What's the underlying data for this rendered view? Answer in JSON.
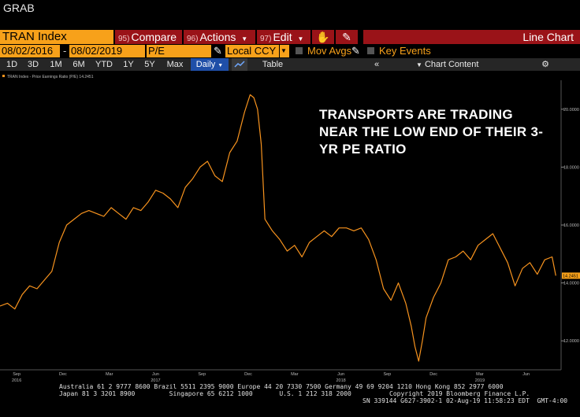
{
  "window": {
    "title": "GRAB"
  },
  "toolbar": {
    "ticker": "TRAN Index",
    "compare": {
      "num": "95)",
      "label": "Compare"
    },
    "actions": {
      "num": "96)",
      "label": "Actions"
    },
    "edit": {
      "num": "97)",
      "label": "Edit"
    },
    "chart_type": "Line Chart"
  },
  "settings": {
    "start_date": "08/02/2016",
    "end_date": "08/02/2019",
    "field": "P/E",
    "currency": "Local CCY",
    "mov_avgs": "Mov Avgs",
    "key_events": "Key Events"
  },
  "periods": {
    "items": [
      "1D",
      "3D",
      "1M",
      "6M",
      "YTD",
      "1Y",
      "5Y",
      "Max"
    ],
    "frequency": "Daily",
    "table": "Table",
    "chart_content": "Chart Content"
  },
  "footer": {
    "line1": "Australia 61 2 9777 8600 Brazil 5511 2395 9000 Europe 44 20 7330 7500 Germany 49 69 9204 1210 Hong Kong 852 2977 6000",
    "line2": "Japan 81 3 3201 8900         Singapore 65 6212 1000       U.S. 1 212 318 2000          Copyright 2019 Bloomberg Finance L.P.",
    "line3": "SN 339144 G627-3902-1 02-Aug-19 11:58:23 EDT  GMT-4:00"
  },
  "colors": {
    "line": "#f7931e",
    "ticker_bg": "#f7a11a",
    "button_bg": "#9a1318"
  },
  "chart_data": {
    "type": "line",
    "title": "",
    "xlabel": "",
    "ylabel": "",
    "legend": "TRAN Index - Price Earnings Ratio (P/E) 14.2451",
    "last_value_label": "14.2451",
    "ylim": [
      11.0,
      21.0
    ],
    "yticks": [
      "12.0000",
      "14.0000",
      "16.0000",
      "18.0000",
      "20.0000"
    ],
    "yticks_values": [
      12,
      14,
      16,
      18,
      20
    ],
    "xlim": [
      2016.58,
      2019.6
    ],
    "xticks": [
      "Sep",
      "Dec",
      "Mar",
      "Jun",
      "Sep",
      "Dec",
      "Mar",
      "Jun",
      "Sep",
      "Dec",
      "Mar",
      "Jun"
    ],
    "xticks_values": [
      2016.67,
      2016.92,
      2017.17,
      2017.42,
      2017.67,
      2017.92,
      2018.17,
      2018.42,
      2018.67,
      2018.92,
      2019.17,
      2019.42
    ],
    "year_labels": [
      "2016",
      "2017",
      "2018",
      "2019"
    ],
    "year_label_values": [
      2016.67,
      2017.42,
      2018.42,
      2019.17
    ],
    "series": [
      {
        "x": [
          2016.58,
          2016.62,
          2016.66,
          2016.7,
          2016.74,
          2016.78,
          2016.82,
          2016.86,
          2016.9,
          2016.94,
          2016.98,
          2017.02,
          2017.06,
          2017.1,
          2017.14,
          2017.18,
          2017.22,
          2017.26,
          2017.3,
          2017.34,
          2017.38,
          2017.42,
          2017.46,
          2017.5,
          2017.54,
          2017.58,
          2017.62,
          2017.66,
          2017.7,
          2017.74,
          2017.78,
          2017.82,
          2017.86,
          2017.9,
          2017.93,
          2017.95,
          2017.97,
          2017.99,
          2018.01,
          2018.05,
          2018.09,
          2018.13,
          2018.17,
          2018.21,
          2018.25,
          2018.29,
          2018.33,
          2018.37,
          2018.41,
          2018.45,
          2018.49,
          2018.53,
          2018.57,
          2018.61,
          2018.65,
          2018.69,
          2018.73,
          2018.77,
          2018.8,
          2018.82,
          2018.84,
          2018.86,
          2018.88,
          2018.92,
          2018.96,
          2019.0,
          2019.04,
          2019.08,
          2019.12,
          2019.16,
          2019.2,
          2019.24,
          2019.28,
          2019.32,
          2019.36,
          2019.4,
          2019.44,
          2019.48,
          2019.52,
          2019.56,
          2019.58
        ],
        "values": [
          13.2,
          13.3,
          13.1,
          13.6,
          13.9,
          13.8,
          14.1,
          14.4,
          15.4,
          16.0,
          16.2,
          16.4,
          16.5,
          16.4,
          16.3,
          16.6,
          16.4,
          16.2,
          16.6,
          16.5,
          16.8,
          17.2,
          17.1,
          16.9,
          16.6,
          17.3,
          17.6,
          18.0,
          18.2,
          17.7,
          17.5,
          18.5,
          18.9,
          19.9,
          20.5,
          20.4,
          20.0,
          18.8,
          16.2,
          15.8,
          15.5,
          15.1,
          15.3,
          14.9,
          15.4,
          15.6,
          15.8,
          15.6,
          15.9,
          15.9,
          15.8,
          15.9,
          15.5,
          14.8,
          13.8,
          13.4,
          14.0,
          13.3,
          12.5,
          11.8,
          11.3,
          12.0,
          12.8,
          13.5,
          14.0,
          14.8,
          14.9,
          15.1,
          14.8,
          15.3,
          15.5,
          15.7,
          15.2,
          14.7,
          13.9,
          14.5,
          14.7,
          14.3,
          14.8,
          14.9,
          14.25
        ],
        "color": "#f7931e"
      }
    ]
  },
  "annotation": "TRANSPORTS ARE TRADING NEAR THE LOW END OF THEIR 3-YR PE RATIO"
}
